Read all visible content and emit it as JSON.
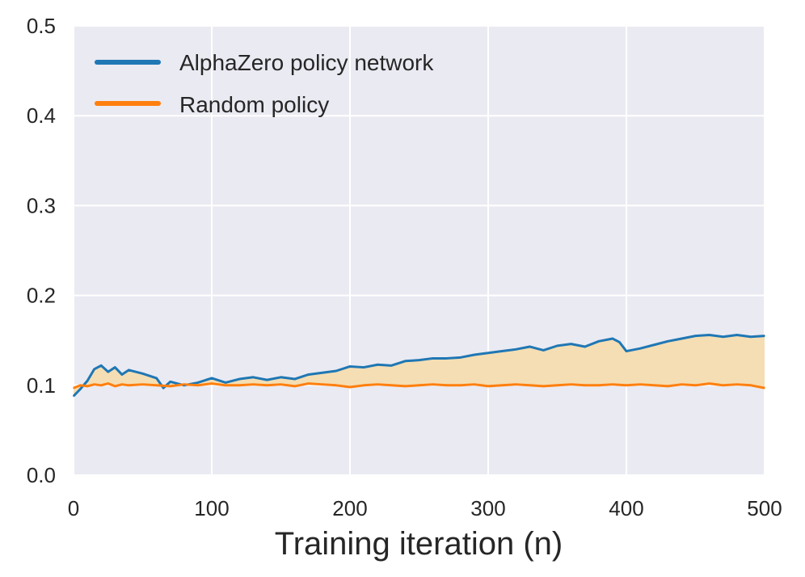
{
  "chart_data": {
    "type": "line",
    "title": "",
    "xlabel": "Training iteration (n)",
    "ylabel": "",
    "xlim": [
      0,
      500
    ],
    "ylim": [
      0,
      0.5
    ],
    "x_ticks": [
      0,
      100,
      200,
      300,
      400,
      500
    ],
    "x_tick_labels": [
      "0",
      "100",
      "200",
      "300",
      "400",
      "500"
    ],
    "y_ticks": [
      0.0,
      0.1,
      0.2,
      0.3,
      0.4,
      0.5
    ],
    "y_tick_labels": [
      "0.0",
      "0.1",
      "0.2",
      "0.3",
      "0.4",
      "0.5"
    ],
    "grid": true,
    "legend_position": "top-left",
    "fill_between": {
      "series": [
        "AlphaZero policy network",
        "Random policy"
      ],
      "color": "#f5deb3"
    },
    "series": [
      {
        "name": "AlphaZero policy network",
        "color": "#1f77b4",
        "x": [
          0,
          5,
          10,
          15,
          20,
          25,
          30,
          35,
          40,
          50,
          60,
          65,
          70,
          80,
          90,
          100,
          110,
          120,
          130,
          140,
          150,
          160,
          170,
          180,
          190,
          200,
          210,
          220,
          230,
          240,
          250,
          260,
          270,
          280,
          290,
          300,
          310,
          320,
          330,
          340,
          350,
          360,
          370,
          380,
          390,
          395,
          400,
          410,
          420,
          430,
          440,
          450,
          460,
          470,
          480,
          490,
          500
        ],
        "values": [
          0.088,
          0.096,
          0.105,
          0.118,
          0.122,
          0.115,
          0.12,
          0.112,
          0.117,
          0.113,
          0.108,
          0.097,
          0.104,
          0.1,
          0.103,
          0.108,
          0.103,
          0.107,
          0.109,
          0.106,
          0.109,
          0.107,
          0.112,
          0.114,
          0.116,
          0.121,
          0.12,
          0.123,
          0.122,
          0.127,
          0.128,
          0.13,
          0.13,
          0.131,
          0.134,
          0.136,
          0.138,
          0.14,
          0.143,
          0.139,
          0.144,
          0.146,
          0.143,
          0.149,
          0.152,
          0.148,
          0.138,
          0.141,
          0.145,
          0.149,
          0.152,
          0.155,
          0.156,
          0.154,
          0.156,
          0.154,
          0.155
        ]
      },
      {
        "name": "Random policy",
        "color": "#ff7f0e",
        "x": [
          0,
          5,
          10,
          15,
          20,
          25,
          30,
          35,
          40,
          50,
          60,
          70,
          80,
          90,
          100,
          110,
          120,
          130,
          140,
          150,
          160,
          170,
          180,
          190,
          200,
          210,
          220,
          230,
          240,
          250,
          260,
          270,
          280,
          290,
          300,
          310,
          320,
          330,
          340,
          350,
          360,
          370,
          380,
          390,
          400,
          410,
          420,
          430,
          440,
          450,
          460,
          470,
          480,
          490,
          500
        ],
        "values": [
          0.097,
          0.1,
          0.099,
          0.101,
          0.1,
          0.102,
          0.099,
          0.101,
          0.1,
          0.101,
          0.1,
          0.099,
          0.101,
          0.1,
          0.102,
          0.1,
          0.1,
          0.101,
          0.1,
          0.101,
          0.099,
          0.102,
          0.101,
          0.1,
          0.098,
          0.1,
          0.101,
          0.1,
          0.099,
          0.1,
          0.101,
          0.1,
          0.1,
          0.101,
          0.099,
          0.1,
          0.101,
          0.1,
          0.099,
          0.1,
          0.101,
          0.1,
          0.1,
          0.101,
          0.1,
          0.101,
          0.1,
          0.099,
          0.101,
          0.1,
          0.102,
          0.1,
          0.101,
          0.1,
          0.097
        ]
      }
    ]
  }
}
